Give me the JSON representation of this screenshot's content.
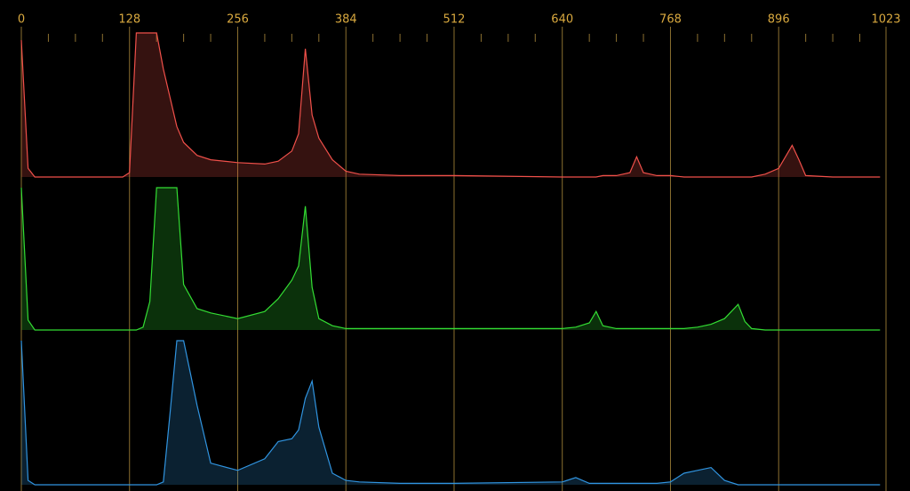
{
  "chart_data": {
    "type": "area",
    "x": [
      0,
      8,
      16,
      120,
      128,
      136,
      144,
      152,
      160,
      168,
      176,
      184,
      192,
      208,
      224,
      256,
      288,
      304,
      320,
      328,
      336,
      344,
      352,
      368,
      384,
      400,
      448,
      512,
      640,
      656,
      672,
      680,
      688,
      704,
      720,
      728,
      736,
      752,
      768,
      784,
      800,
      816,
      832,
      848,
      856,
      864,
      880,
      896,
      912,
      920,
      928,
      960,
      1016
    ],
    "xlim": [
      0,
      1023
    ],
    "xticks": [
      0,
      128,
      256,
      384,
      512,
      640,
      768,
      896,
      1023
    ],
    "xminorticks": [
      32,
      64,
      96,
      160,
      192,
      224,
      288,
      320,
      352,
      416,
      448,
      480,
      544,
      576,
      608,
      672,
      704,
      736,
      800,
      832,
      864,
      928,
      960,
      992
    ],
    "ylim": [
      0,
      100
    ],
    "grid": true,
    "series": [
      {
        "color": "#f0504a",
        "values": [
          95,
          6,
          0,
          0,
          3,
          100,
          100,
          100,
          100,
          75,
          55,
          35,
          24,
          15,
          12,
          10,
          9,
          11,
          18,
          30,
          89,
          43,
          27,
          12,
          4,
          2,
          1,
          1,
          0,
          0,
          0,
          0,
          1,
          1,
          3,
          14,
          3,
          1,
          1,
          0,
          0,
          0,
          0,
          0,
          0,
          0,
          2,
          6,
          22,
          12,
          1,
          0,
          0
        ]
      },
      {
        "color": "#33dd33",
        "values": [
          100,
          7,
          0,
          0,
          0,
          0,
          2,
          20,
          100,
          100,
          100,
          100,
          32,
          15,
          12,
          8,
          13,
          22,
          35,
          45,
          87,
          30,
          8,
          3,
          1,
          1,
          1,
          1,
          1,
          2,
          5,
          13,
          3,
          1,
          1,
          1,
          1,
          1,
          1,
          1,
          2,
          4,
          8,
          18,
          6,
          1,
          0,
          0,
          0,
          0,
          0,
          0,
          0
        ]
      },
      {
        "color": "#3094e0",
        "values": [
          100,
          3,
          0,
          0,
          0,
          0,
          0,
          0,
          0,
          2,
          50,
          100,
          100,
          55,
          15,
          10,
          18,
          30,
          32,
          38,
          60,
          72,
          40,
          8,
          3,
          2,
          1,
          1,
          2,
          5,
          1,
          1,
          1,
          1,
          1,
          1,
          1,
          1,
          2,
          8,
          10,
          12,
          3,
          0,
          0,
          0,
          0,
          0,
          0,
          0,
          0,
          0,
          0
        ]
      }
    ]
  }
}
